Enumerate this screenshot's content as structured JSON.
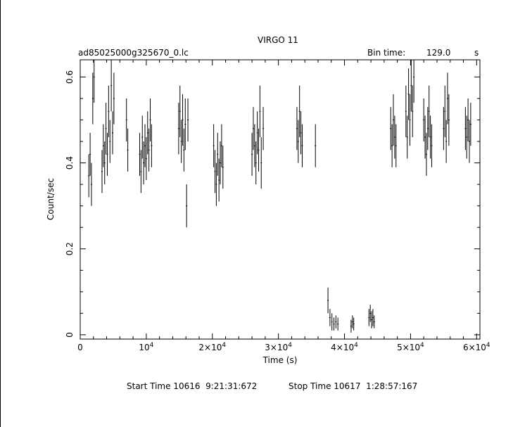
{
  "chart_data": {
    "type": "scatter",
    "title": "VIRGO 11",
    "file_label": "ad85025000g325670_0.lc",
    "bin_time_label": "Bin time:",
    "bin_time_value": "129.0",
    "bin_time_unit": "s",
    "xlabel": "Time (s)",
    "ylabel": "Count/sec",
    "xlim": [
      0,
      60500
    ],
    "ylim": [
      -0.01,
      0.64
    ],
    "x_ticks": [
      {
        "value": 0,
        "label": "0",
        "exp": ""
      },
      {
        "value": 10000,
        "label": "10",
        "exp": "4"
      },
      {
        "value": 20000,
        "label": "2×10",
        "exp": "4"
      },
      {
        "value": 30000,
        "label": "3×10",
        "exp": "4"
      },
      {
        "value": 40000,
        "label": "4×10",
        "exp": "4"
      },
      {
        "value": 50000,
        "label": "5×10",
        "exp": "4"
      },
      {
        "value": 60000,
        "label": "6×10",
        "exp": "4"
      }
    ],
    "y_ticks": [
      {
        "value": 0,
        "label": "0"
      },
      {
        "value": 0.2,
        "label": "0.2"
      },
      {
        "value": 0.4,
        "label": "0.4"
      },
      {
        "value": 0.6,
        "label": "0.6"
      }
    ],
    "grid": false,
    "start_time": "Start Time 10616  9:21:31:672",
    "stop_time": "Stop Time 10617  1:28:57:167",
    "points": [
      [
        1300,
        0.37,
        0.05
      ],
      [
        1500,
        0.42,
        0.05
      ],
      [
        1700,
        0.35,
        0.05
      ],
      [
        1900,
        0.55,
        0.06
      ],
      [
        2100,
        0.6,
        0.06
      ],
      [
        3300,
        0.38,
        0.05
      ],
      [
        3500,
        0.44,
        0.05
      ],
      [
        3700,
        0.4,
        0.05
      ],
      [
        3900,
        0.48,
        0.06
      ],
      [
        4100,
        0.42,
        0.05
      ],
      [
        4300,
        0.52,
        0.06
      ],
      [
        4500,
        0.45,
        0.05
      ],
      [
        4700,
        0.58,
        0.06
      ],
      [
        4900,
        0.47,
        0.05
      ],
      [
        5100,
        0.55,
        0.06
      ],
      [
        7000,
        0.5,
        0.05
      ],
      [
        7200,
        0.43,
        0.05
      ],
      [
        9000,
        0.42,
        0.05
      ],
      [
        9200,
        0.38,
        0.05
      ],
      [
        9400,
        0.46,
        0.05
      ],
      [
        9600,
        0.4,
        0.05
      ],
      [
        9800,
        0.44,
        0.05
      ],
      [
        10000,
        0.41,
        0.05
      ],
      [
        10200,
        0.47,
        0.05
      ],
      [
        10400,
        0.43,
        0.05
      ],
      [
        10600,
        0.5,
        0.05
      ],
      [
        10800,
        0.44,
        0.05
      ],
      [
        14900,
        0.48,
        0.06
      ],
      [
        15100,
        0.52,
        0.06
      ],
      [
        15300,
        0.45,
        0.05
      ],
      [
        15500,
        0.5,
        0.06
      ],
      [
        15700,
        0.43,
        0.05
      ],
      [
        15900,
        0.49,
        0.06
      ],
      [
        16100,
        0.3,
        0.05
      ],
      [
        16300,
        0.5,
        0.05
      ],
      [
        20200,
        0.44,
        0.05
      ],
      [
        20400,
        0.38,
        0.05
      ],
      [
        20600,
        0.35,
        0.05
      ],
      [
        20800,
        0.42,
        0.05
      ],
      [
        21000,
        0.36,
        0.05
      ],
      [
        21200,
        0.4,
        0.05
      ],
      [
        21400,
        0.44,
        0.05
      ],
      [
        21600,
        0.39,
        0.05
      ],
      [
        26000,
        0.42,
        0.05
      ],
      [
        26200,
        0.48,
        0.05
      ],
      [
        26400,
        0.44,
        0.05
      ],
      [
        26600,
        0.4,
        0.05
      ],
      [
        26800,
        0.47,
        0.05
      ],
      [
        27000,
        0.43,
        0.05
      ],
      [
        27200,
        0.52,
        0.06
      ],
      [
        27400,
        0.4,
        0.06
      ],
      [
        27700,
        0.48,
        0.05
      ],
      [
        32800,
        0.48,
        0.05
      ],
      [
        33000,
        0.45,
        0.05
      ],
      [
        33200,
        0.52,
        0.06
      ],
      [
        33400,
        0.47,
        0.05
      ],
      [
        33600,
        0.44,
        0.05
      ],
      [
        35600,
        0.44,
        0.05
      ],
      [
        37500,
        0.08,
        0.03
      ],
      [
        37800,
        0.04,
        0.02
      ],
      [
        38100,
        0.03,
        0.02
      ],
      [
        38400,
        0.025,
        0.015
      ],
      [
        38700,
        0.03,
        0.015
      ],
      [
        39000,
        0.025,
        0.015
      ],
      [
        41000,
        0.02,
        0.015
      ],
      [
        41200,
        0.03,
        0.015
      ],
      [
        41400,
        0.025,
        0.015
      ],
      [
        43700,
        0.04,
        0.02
      ],
      [
        43900,
        0.05,
        0.02
      ],
      [
        44100,
        0.035,
        0.02
      ],
      [
        44300,
        0.04,
        0.02
      ],
      [
        44500,
        0.03,
        0.015
      ],
      [
        47000,
        0.48,
        0.05
      ],
      [
        47200,
        0.44,
        0.05
      ],
      [
        47400,
        0.5,
        0.06
      ],
      [
        47600,
        0.46,
        0.05
      ],
      [
        47800,
        0.44,
        0.05
      ],
      [
        49300,
        0.52,
        0.06
      ],
      [
        49500,
        0.46,
        0.05
      ],
      [
        49700,
        0.56,
        0.06
      ],
      [
        49900,
        0.5,
        0.06
      ],
      [
        50100,
        0.58,
        0.06
      ],
      [
        50300,
        0.52,
        0.06
      ],
      [
        50500,
        0.6,
        0.06
      ],
      [
        52000,
        0.5,
        0.05
      ],
      [
        52200,
        0.46,
        0.05
      ],
      [
        52400,
        0.42,
        0.05
      ],
      [
        52600,
        0.48,
        0.05
      ],
      [
        52800,
        0.52,
        0.06
      ],
      [
        53000,
        0.46,
        0.05
      ],
      [
        53200,
        0.44,
        0.05
      ],
      [
        55000,
        0.48,
        0.05
      ],
      [
        55200,
        0.52,
        0.06
      ],
      [
        55400,
        0.45,
        0.05
      ],
      [
        55600,
        0.55,
        0.06
      ],
      [
        55800,
        0.5,
        0.06
      ],
      [
        58300,
        0.48,
        0.05
      ],
      [
        58500,
        0.46,
        0.05
      ],
      [
        58700,
        0.5,
        0.05
      ],
      [
        58900,
        0.45,
        0.05
      ],
      [
        59100,
        0.49,
        0.05
      ]
    ]
  }
}
